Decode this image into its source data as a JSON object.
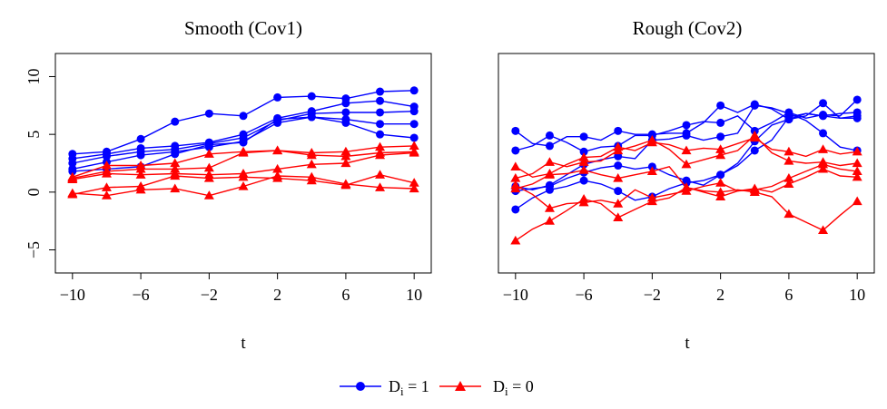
{
  "chart_data": [
    {
      "type": "line",
      "title": "Smooth (Cov1)",
      "xlabel": "t",
      "ylabel": "",
      "xlim": [
        -11,
        11
      ],
      "ylim": [
        -7,
        12
      ],
      "x_ticks": [
        -10,
        -6,
        -2,
        2,
        6,
        10
      ],
      "y_ticks": [
        -5,
        0,
        5,
        10
      ],
      "grid": false,
      "legend": "bottom",
      "series": [
        {
          "group": "D1",
          "color": "#0000ff",
          "x": [
            -10,
            -8,
            -6,
            -4,
            -2,
            0,
            2,
            4,
            6,
            8,
            10
          ],
          "y": [
            3.3,
            3.5,
            4.6,
            6.1,
            6.8,
            6.6,
            8.2,
            8.3,
            8.1,
            8.7,
            8.8
          ]
        },
        {
          "group": "D1",
          "color": "#0000ff",
          "x": [
            -10,
            -8,
            -6,
            -4,
            -2,
            0,
            2,
            4,
            6,
            8,
            10
          ],
          "y": [
            2.9,
            3.3,
            3.8,
            4.0,
            4.3,
            5.0,
            6.4,
            7.0,
            7.7,
            7.9,
            7.4
          ]
        },
        {
          "group": "D1",
          "color": "#0000ff",
          "x": [
            -10,
            -8,
            -6,
            -4,
            -2,
            0,
            2,
            4,
            6,
            8,
            10
          ],
          "y": [
            2.5,
            3.1,
            3.5,
            3.7,
            4.2,
            4.7,
            6.2,
            6.8,
            6.9,
            6.9,
            7.0
          ]
        },
        {
          "group": "D1",
          "color": "#0000ff",
          "x": [
            -10,
            -8,
            -6,
            -4,
            -2,
            0,
            2,
            4,
            6,
            8,
            10
          ],
          "y": [
            2.0,
            2.6,
            3.2,
            3.5,
            3.9,
            4.4,
            6.0,
            6.5,
            6.3,
            5.9,
            5.9
          ]
        },
        {
          "group": "D1",
          "color": "#0000ff",
          "x": [
            -10,
            -8,
            -6,
            -4,
            -2,
            0,
            2,
            4,
            6,
            8,
            10
          ],
          "y": [
            1.8,
            2.0,
            2.2,
            3.3,
            4.1,
            4.3,
            6.3,
            6.5,
            6.0,
            5.0,
            4.7
          ]
        },
        {
          "group": "D0",
          "color": "#ff0000",
          "x": [
            -10,
            -8,
            -6,
            -4,
            -2,
            0,
            2,
            4,
            6,
            8,
            10
          ],
          "y": [
            1.3,
            2.3,
            2.3,
            2.5,
            3.3,
            3.5,
            3.6,
            3.4,
            3.5,
            3.9,
            4.0
          ]
        },
        {
          "group": "D0",
          "color": "#ff0000",
          "x": [
            -10,
            -8,
            -6,
            -4,
            -2,
            0,
            2,
            4,
            6,
            8,
            10
          ],
          "y": [
            1.2,
            1.8,
            2.0,
            2.0,
            2.1,
            3.4,
            3.6,
            3.2,
            3.1,
            3.4,
            3.5
          ]
        },
        {
          "group": "D0",
          "color": "#ff0000",
          "x": [
            -10,
            -8,
            -6,
            -4,
            -2,
            0,
            2,
            4,
            6,
            8,
            10
          ],
          "y": [
            1.1,
            1.6,
            1.5,
            1.6,
            1.5,
            1.6,
            2.0,
            2.4,
            2.5,
            3.2,
            3.4
          ]
        },
        {
          "group": "D0",
          "color": "#ff0000",
          "x": [
            -10,
            -8,
            -6,
            -4,
            -2,
            0,
            2,
            4,
            6,
            8,
            10
          ],
          "y": [
            -0.2,
            0.4,
            0.5,
            1.4,
            1.2,
            1.3,
            1.2,
            1.0,
            0.6,
            1.5,
            0.8
          ]
        },
        {
          "group": "D0",
          "color": "#ff0000",
          "x": [
            -10,
            -8,
            -6,
            -4,
            -2,
            0,
            2,
            4,
            6,
            8,
            10
          ],
          "y": [
            -0.1,
            -0.3,
            0.2,
            0.3,
            -0.3,
            0.5,
            1.4,
            1.3,
            0.7,
            0.4,
            0.3
          ]
        }
      ]
    },
    {
      "type": "line",
      "title": "Rough (Cov2)",
      "xlabel": "t",
      "ylabel": "",
      "xlim": [
        -11,
        11
      ],
      "ylim": [
        -7,
        12
      ],
      "x_ticks": [
        -10,
        -6,
        -2,
        2,
        6,
        10
      ],
      "y_ticks": [
        -5,
        0,
        5,
        10
      ],
      "grid": false,
      "legend": "bottom",
      "series": [
        {
          "group": "D1",
          "color": "#0000ff",
          "x": [
            -10,
            -9,
            -8,
            -7,
            -6,
            -5,
            -4,
            -3,
            -2,
            -1,
            0,
            1,
            2,
            3,
            4,
            5,
            6,
            7,
            8,
            9,
            10
          ],
          "y": [
            5.3,
            4.2,
            4.0,
            4.8,
            4.8,
            4.5,
            5.3,
            5.0,
            5.0,
            5.1,
            5.1,
            6.0,
            7.5,
            6.9,
            7.6,
            7.2,
            6.3,
            6.6,
            7.7,
            6.4,
            6.6
          ]
        },
        {
          "group": "D1",
          "color": "#0000ff",
          "x": [
            -10,
            -9,
            -8,
            -7,
            -6,
            -5,
            -4,
            -3,
            -2,
            -1,
            0,
            1,
            2,
            3,
            4,
            5,
            6,
            7,
            8,
            9,
            10
          ],
          "y": [
            3.6,
            4.0,
            4.9,
            4.3,
            3.5,
            3.9,
            4.0,
            4.9,
            4.9,
            5.3,
            5.8,
            6.1,
            6.0,
            6.6,
            5.3,
            6.0,
            6.9,
            6.4,
            6.7,
            6.6,
            8.0
          ]
        },
        {
          "group": "D1",
          "color": "#0000ff",
          "x": [
            -10,
            -9,
            -8,
            -7,
            -6,
            -5,
            -4,
            -3,
            -2,
            -1,
            0,
            1,
            2,
            3,
            4,
            5,
            6,
            7,
            8,
            9,
            10
          ],
          "y": [
            0.5,
            0.2,
            0.6,
            1.5,
            2.4,
            2.8,
            3.1,
            2.9,
            4.5,
            4.6,
            4.9,
            4.5,
            4.8,
            5.1,
            7.5,
            7.3,
            6.8,
            6.2,
            5.1,
            3.9,
            3.6
          ]
        },
        {
          "group": "D1",
          "color": "#0000ff",
          "x": [
            -10,
            -9,
            -8,
            -7,
            -6,
            -5,
            -4,
            -3,
            -2,
            -1,
            0,
            1,
            2,
            3,
            4,
            5,
            6,
            7,
            8,
            9,
            10
          ],
          "y": [
            0.1,
            0.3,
            0.5,
            1.2,
            1.7,
            2.1,
            2.3,
            2.0,
            2.2,
            1.5,
            1.0,
            0.6,
            1.5,
            2.5,
            4.4,
            5.8,
            6.3,
            6.8,
            6.6,
            6.8,
            6.9
          ]
        },
        {
          "group": "D1",
          "color": "#0000ff",
          "x": [
            -10,
            -9,
            -8,
            -7,
            -6,
            -5,
            -4,
            -3,
            -2,
            -1,
            0,
            1,
            2,
            3,
            4,
            5,
            6,
            7,
            8,
            9,
            10
          ],
          "y": [
            -1.5,
            -0.5,
            0.2,
            0.5,
            1.0,
            0.7,
            0.1,
            -0.7,
            -0.4,
            0.3,
            0.8,
            1.0,
            1.5,
            2.3,
            3.6,
            4.5,
            6.5,
            6.8,
            6.6,
            6.4,
            6.4
          ]
        },
        {
          "group": "D0",
          "color": "#ff0000",
          "x": [
            -10,
            -9,
            -8,
            -7,
            -6,
            -5,
            -4,
            -3,
            -2,
            -1,
            0,
            1,
            2,
            3,
            4,
            5,
            6,
            7,
            8,
            9,
            10
          ],
          "y": [
            2.2,
            1.3,
            1.6,
            2.4,
            3.0,
            3.1,
            3.9,
            3.6,
            4.3,
            4.1,
            3.6,
            3.8,
            3.7,
            4.2,
            4.7,
            3.7,
            3.5,
            3.1,
            3.7,
            3.3,
            3.5
          ]
        },
        {
          "group": "D0",
          "color": "#ff0000",
          "x": [
            -10,
            -9,
            -8,
            -7,
            -6,
            -5,
            -4,
            -3,
            -2,
            -1,
            0,
            1,
            2,
            3,
            4,
            5,
            6,
            7,
            8,
            9,
            10
          ],
          "y": [
            1.2,
            1.6,
            2.6,
            2.2,
            2.6,
            2.7,
            3.6,
            4.0,
            4.5,
            3.7,
            2.4,
            2.8,
            3.2,
            3.6,
            4.9,
            3.4,
            2.7,
            2.5,
            2.6,
            2.3,
            2.5
          ]
        },
        {
          "group": "D0",
          "color": "#ff0000",
          "x": [
            -10,
            -9,
            -8,
            -7,
            -6,
            -5,
            -4,
            -3,
            -2,
            -1,
            0,
            1,
            2,
            3,
            4,
            5,
            6,
            7,
            8,
            9,
            10
          ],
          "y": [
            0.6,
            -0.2,
            -1.4,
            -1.0,
            -0.9,
            -0.7,
            -1.0,
            0.2,
            -0.5,
            -0.2,
            0.1,
            0.5,
            0.8,
            0.1,
            0.2,
            0.5,
            1.2,
            1.8,
            2.4,
            2.0,
            1.8
          ]
        },
        {
          "group": "D0",
          "color": "#ff0000",
          "x": [
            -10,
            -9,
            -8,
            -7,
            -6,
            -5,
            -4,
            -3,
            -2,
            -1,
            0,
            1,
            2,
            3,
            4,
            5,
            6,
            7,
            8,
            9,
            10
          ],
          "y": [
            0.3,
            0.7,
            1.5,
            1.6,
            1.9,
            1.5,
            1.2,
            1.5,
            1.8,
            2.2,
            0.4,
            0.0,
            -0.4,
            0.1,
            0.3,
            0.0,
            0.7,
            1.3,
            2.0,
            1.4,
            1.3
          ]
        },
        {
          "group": "D0",
          "color": "#ff0000",
          "x": [
            -10,
            -9,
            -8,
            -7,
            -6,
            -5,
            -4,
            -3,
            -2,
            -1,
            0,
            1,
            2,
            3,
            4,
            5,
            6,
            7,
            8,
            9,
            10
          ],
          "y": [
            -4.2,
            -3.2,
            -2.5,
            -1.6,
            -0.6,
            -1.0,
            -2.2,
            -1.5,
            -0.8,
            -0.5,
            0.4,
            0.1,
            0.0,
            0.2,
            0.0,
            -0.4,
            -1.9,
            -2.6,
            -3.3,
            -2.0,
            -0.8
          ]
        }
      ]
    }
  ],
  "legend": {
    "items": [
      {
        "label": "D",
        "sub": "i",
        "suffix": " = 1",
        "color": "#0000ff",
        "marker": "circle"
      },
      {
        "label": "D",
        "sub": "i",
        "suffix": " = 0",
        "color": "#ff0000",
        "marker": "triangle"
      }
    ]
  }
}
